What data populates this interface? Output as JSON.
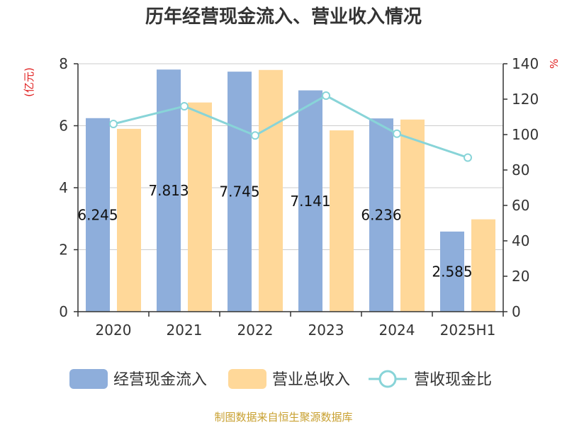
{
  "chart_data": {
    "type": "bar",
    "title": "历年经营现金流入、营业收入情况",
    "categories": [
      "2020",
      "2021",
      "2022",
      "2023",
      "2024",
      "2025H1"
    ],
    "left_axis": {
      "unit": "(亿元)",
      "ylim": [
        0,
        8
      ],
      "ticks": [
        "0",
        "2",
        "4",
        "6",
        "8"
      ]
    },
    "right_axis": {
      "unit": "%",
      "ylim": [
        0,
        140
      ],
      "ticks": [
        "0",
        "20",
        "40",
        "60",
        "80",
        "100",
        "120",
        "140"
      ]
    },
    "series": [
      {
        "name": "经营现金流入",
        "type": "bar",
        "axis": "left",
        "color": "#8eaedb",
        "values": [
          6.245,
          7.813,
          7.745,
          7.141,
          6.236,
          2.585
        ],
        "labels": [
          "6.245",
          "7.813",
          "7.745",
          "7.141",
          "6.236",
          "2.585"
        ]
      },
      {
        "name": "营业总收入",
        "type": "bar",
        "axis": "left",
        "color": "#ffd899",
        "values": [
          5.9,
          6.75,
          7.8,
          5.85,
          6.2,
          2.98
        ]
      },
      {
        "name": "营收现金比",
        "type": "line",
        "axis": "right",
        "color": "#88d4d8",
        "values": [
          106,
          116,
          99.5,
          122,
          100.5,
          87
        ]
      }
    ],
    "grid": true,
    "legend_position": "bottom",
    "source": "制图数据来自恒生聚源数据库"
  }
}
